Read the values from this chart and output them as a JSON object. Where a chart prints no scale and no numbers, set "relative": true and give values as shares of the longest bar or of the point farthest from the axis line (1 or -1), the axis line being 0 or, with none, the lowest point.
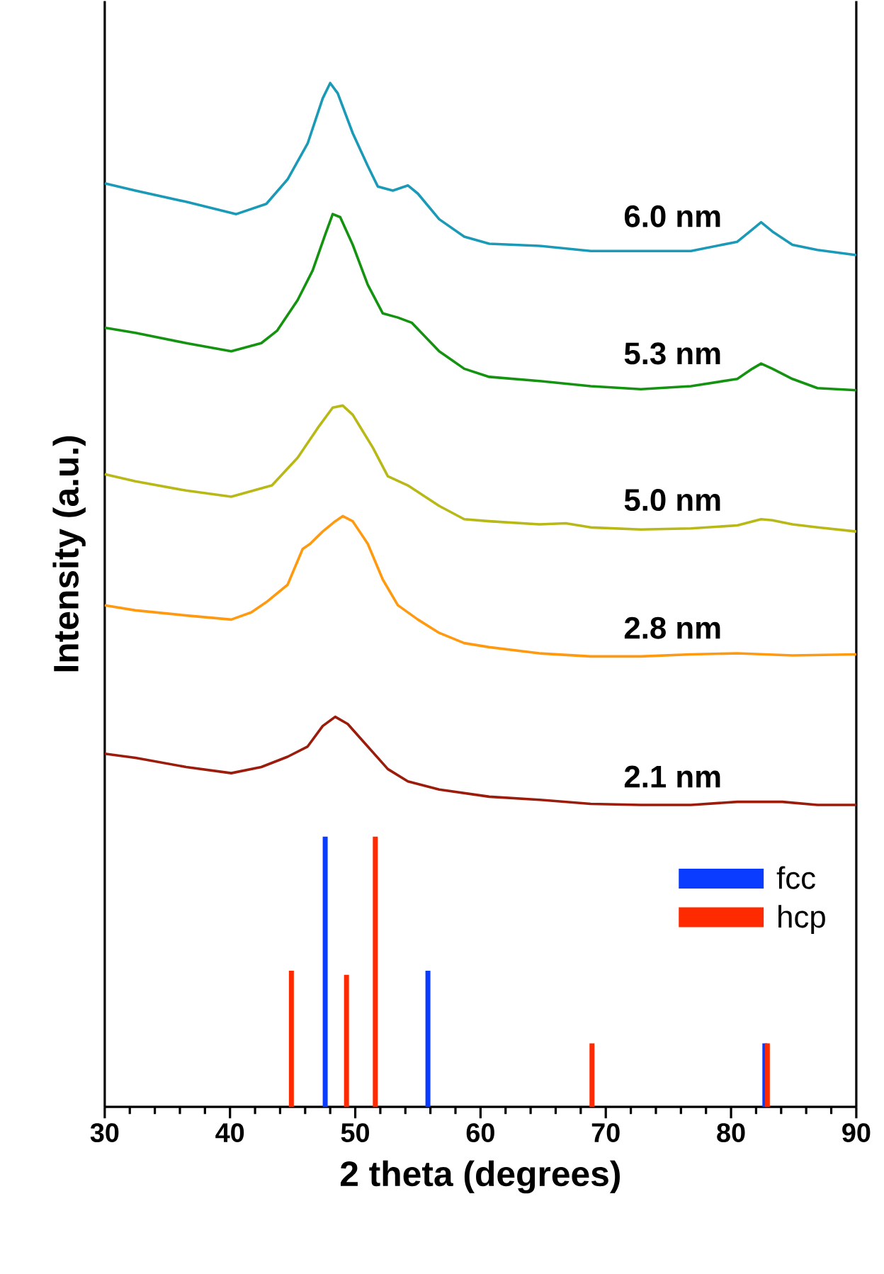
{
  "chart_data": {
    "type": "line",
    "relative": true,
    "xlabel": "2 theta (degrees)",
    "ylabel": "Intensity (a.u.)",
    "xlim": [
      30,
      90
    ],
    "xticks": [
      30,
      40,
      50,
      60,
      70,
      80,
      90
    ],
    "legend": "bottom right",
    "series": [
      {
        "name": "6.0 nm",
        "color": "#1b9ab8",
        "x": [
          30.0,
          32.45,
          36.5,
          40.5,
          42.9,
          44.6,
          46.2,
          47.4,
          48.0,
          48.6,
          49.8,
          51.0,
          51.8,
          53.0,
          54.2,
          55.0,
          56.7,
          58.7,
          60.7,
          64.7,
          68.8,
          72.8,
          76.8,
          80.5,
          81.7,
          82.4,
          83.3,
          84.9,
          86.9,
          90.0
        ],
        "values": [
          0.902,
          0.895,
          0.884,
          0.872,
          0.882,
          0.906,
          0.941,
          0.985,
          1.0,
          0.99,
          0.951,
          0.919,
          0.899,
          0.895,
          0.9,
          0.892,
          0.867,
          0.85,
          0.843,
          0.841,
          0.836,
          0.836,
          0.836,
          0.845,
          0.857,
          0.864,
          0.855,
          0.842,
          0.837,
          0.832
        ]
      },
      {
        "name": "5.3 nm",
        "color": "#13930f",
        "x": [
          30.0,
          32.45,
          36.5,
          40.1,
          42.5,
          43.75,
          45.4,
          46.6,
          47.6,
          48.2,
          48.8,
          49.8,
          51.0,
          52.2,
          53.4,
          54.5,
          56.7,
          58.7,
          60.7,
          64.7,
          68.8,
          72.8,
          76.8,
          80.5,
          81.7,
          82.4,
          83.3,
          84.9,
          86.9,
          90.0
        ],
        "values": [
          0.761,
          0.756,
          0.746,
          0.738,
          0.746,
          0.758,
          0.788,
          0.817,
          0.852,
          0.872,
          0.869,
          0.842,
          0.803,
          0.775,
          0.771,
          0.766,
          0.738,
          0.721,
          0.713,
          0.709,
          0.704,
          0.701,
          0.704,
          0.711,
          0.721,
          0.726,
          0.721,
          0.711,
          0.702,
          0.7
        ]
      },
      {
        "name": "5.0 nm",
        "color": "#b8b816",
        "x": [
          30.0,
          32.45,
          36.5,
          40.1,
          43.35,
          45.4,
          47.0,
          48.2,
          49.0,
          49.8,
          51.4,
          52.6,
          54.2,
          56.7,
          58.7,
          60.7,
          64.7,
          66.8,
          68.8,
          72.8,
          76.8,
          80.5,
          82.4,
          83.3,
          84.9,
          86.9,
          90.0
        ],
        "values": [
          0.618,
          0.611,
          0.602,
          0.596,
          0.607,
          0.634,
          0.663,
          0.683,
          0.685,
          0.676,
          0.644,
          0.616,
          0.607,
          0.587,
          0.574,
          0.572,
          0.569,
          0.57,
          0.566,
          0.564,
          0.565,
          0.568,
          0.574,
          0.573,
          0.569,
          0.566,
          0.562
        ]
      },
      {
        "name": "2.8 nm",
        "color": "#ff9a10",
        "x": [
          30.0,
          32.45,
          36.5,
          40.1,
          41.7,
          42.9,
          44.6,
          45.8,
          46.4,
          47.4,
          48.4,
          49.0,
          49.8,
          51.0,
          52.2,
          53.4,
          55.0,
          56.7,
          58.7,
          60.7,
          64.7,
          68.8,
          72.8,
          76.8,
          80.5,
          84.9,
          90.0
        ],
        "values": [
          0.49,
          0.485,
          0.48,
          0.476,
          0.483,
          0.493,
          0.51,
          0.545,
          0.55,
          0.562,
          0.572,
          0.577,
          0.572,
          0.55,
          0.515,
          0.49,
          0.476,
          0.463,
          0.453,
          0.449,
          0.443,
          0.44,
          0.44,
          0.442,
          0.443,
          0.441,
          0.442
        ]
      },
      {
        "name": "2.1 nm",
        "color": "#9c1c0c",
        "x": [
          30.0,
          32.45,
          36.5,
          40.1,
          42.5,
          44.6,
          46.2,
          47.4,
          48.4,
          49.4,
          51.0,
          52.6,
          54.2,
          56.7,
          60.7,
          64.7,
          68.8,
          72.8,
          76.8,
          80.5,
          84.1,
          86.9,
          90.0
        ],
        "values": [
          0.345,
          0.341,
          0.332,
          0.326,
          0.332,
          0.342,
          0.352,
          0.372,
          0.381,
          0.374,
          0.352,
          0.33,
          0.318,
          0.31,
          0.303,
          0.3,
          0.296,
          0.295,
          0.295,
          0.298,
          0.298,
          0.295,
          0.295
        ]
      },
      {
        "name": "fcc",
        "type": "bar",
        "color": "#0a3cff",
        "x": [
          47.6,
          55.8,
          82.7
        ],
        "values": [
          0.264,
          0.133,
          0.062
        ]
      },
      {
        "name": "hcp",
        "type": "bar",
        "color": "#ff2a00",
        "x": [
          44.9,
          49.3,
          51.6,
          68.9,
          82.9
        ],
        "values": [
          0.133,
          0.129,
          0.264,
          0.062,
          0.062
        ]
      }
    ]
  }
}
